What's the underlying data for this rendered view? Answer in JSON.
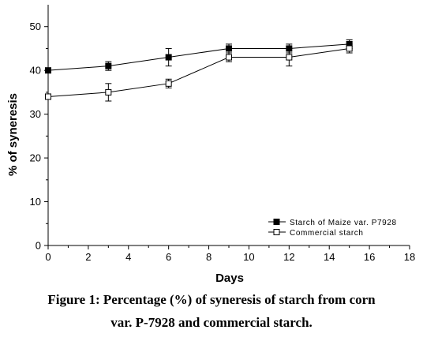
{
  "chart_data": {
    "type": "line",
    "xlabel": "Days",
    "ylabel": "% of syneresis",
    "xlim": [
      0,
      18
    ],
    "ylim": [
      0,
      55
    ],
    "xticks": [
      0,
      2,
      4,
      6,
      8,
      10,
      12,
      14,
      16,
      18
    ],
    "yticks": [
      0,
      10,
      20,
      30,
      40,
      50
    ],
    "x": [
      0,
      3,
      6,
      9,
      12,
      15
    ],
    "grid": false,
    "legend_position": "bottom-right",
    "series": [
      {
        "name": "Starch of Maize var. P7928",
        "marker": "filled-square",
        "color": "#000000",
        "values": [
          40,
          41,
          43,
          45,
          45,
          46
        ],
        "errors": [
          0,
          1,
          2,
          1,
          1,
          1
        ]
      },
      {
        "name": "Commercial starch",
        "marker": "open-square",
        "color": "#000000",
        "values": [
          34,
          35,
          37,
          43,
          43,
          45
        ],
        "errors": [
          0,
          2,
          1,
          1,
          2,
          1
        ]
      }
    ]
  },
  "caption": {
    "line1": "Figure 1: Percentage (%) of syneresis of starch from corn",
    "line2": "var. P-7928 and commercial starch."
  }
}
